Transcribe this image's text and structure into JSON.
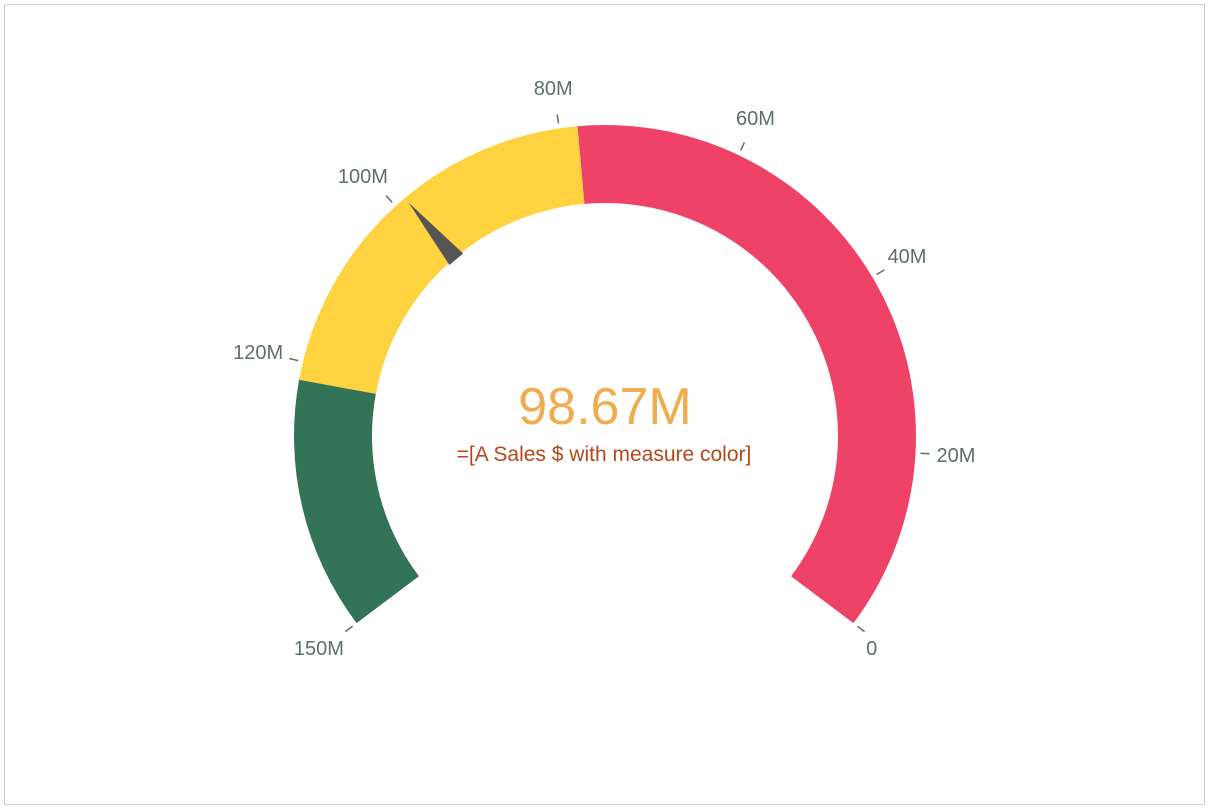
{
  "chart_data": {
    "type": "gauge",
    "min": 0,
    "max": 150000000,
    "value": 98670000,
    "value_label": "98.67M",
    "measure_label": "=[A Sales $  with measure color]",
    "direction": "counterclockwise",
    "ticks": [
      {
        "value": 0,
        "label": "0"
      },
      {
        "value": 20000000,
        "label": "20M"
      },
      {
        "value": 40000000,
        "label": "40M"
      },
      {
        "value": 60000000,
        "label": "60M"
      },
      {
        "value": 80000000,
        "label": "80M"
      },
      {
        "value": 100000000,
        "label": "100M"
      },
      {
        "value": 120000000,
        "label": "120M"
      },
      {
        "value": 150000000,
        "label": "150M"
      }
    ],
    "bands": [
      {
        "from": 0,
        "to": 78000000,
        "color": "#ee4266"
      },
      {
        "from": 78000000,
        "to": 122000000,
        "color": "#ffd23f"
      },
      {
        "from": 122000000,
        "to": 150000000,
        "color": "#337357"
      }
    ],
    "colors": {
      "value_text": "#f0ad4e",
      "measure_text": "#b5471b",
      "needle": "#555555",
      "tick": "#5f6f66"
    }
  }
}
